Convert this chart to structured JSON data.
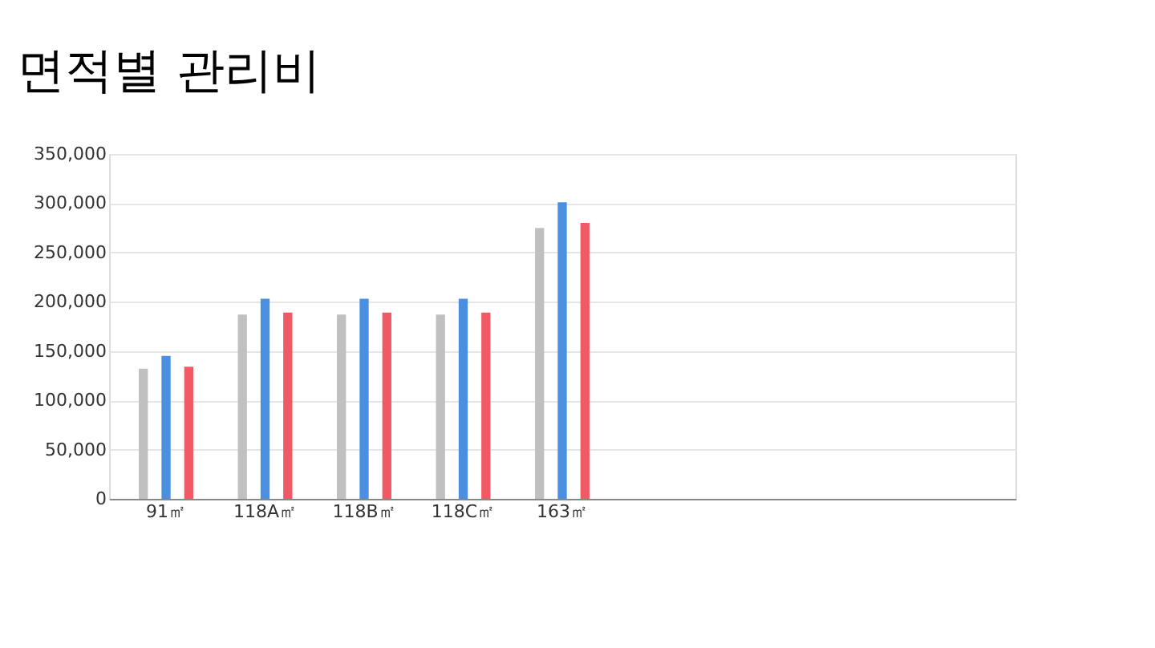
{
  "chart_data": {
    "type": "bar",
    "title": "면적별 관리비",
    "categories": [
      "91㎡",
      "118A㎡",
      "118B㎡",
      "118C㎡",
      "163㎡",
      null,
      null,
      null,
      null
    ],
    "series": [
      {
        "color": "#c0c0c0",
        "values": [
          132000,
          187000,
          187000,
          187000,
          275000,
          null,
          null,
          null,
          null
        ]
      },
      {
        "color": "#4a8fe0",
        "values": [
          145000,
          203000,
          203000,
          203000,
          301000,
          null,
          null,
          null,
          null
        ]
      },
      {
        "color": "#f05a64",
        "values": [
          134000,
          189000,
          189000,
          189000,
          280000,
          null,
          null,
          null,
          null
        ]
      }
    ],
    "ylim": [
      0,
      350000
    ],
    "yticks": [
      0,
      {
        "value": 50000,
        "label": "50,000"
      },
      {
        "value": 100000,
        "label": "100,000"
      },
      {
        "value": 150000,
        "label": "150,000"
      },
      {
        "value": 200000,
        "label": "200,000"
      },
      {
        "value": 250000,
        "label": "250,000"
      },
      {
        "value": 300000,
        "label": "300,000"
      },
      {
        "value": 350000,
        "label": "350,000"
      }
    ],
    "grid": "y",
    "legend": false
  }
}
